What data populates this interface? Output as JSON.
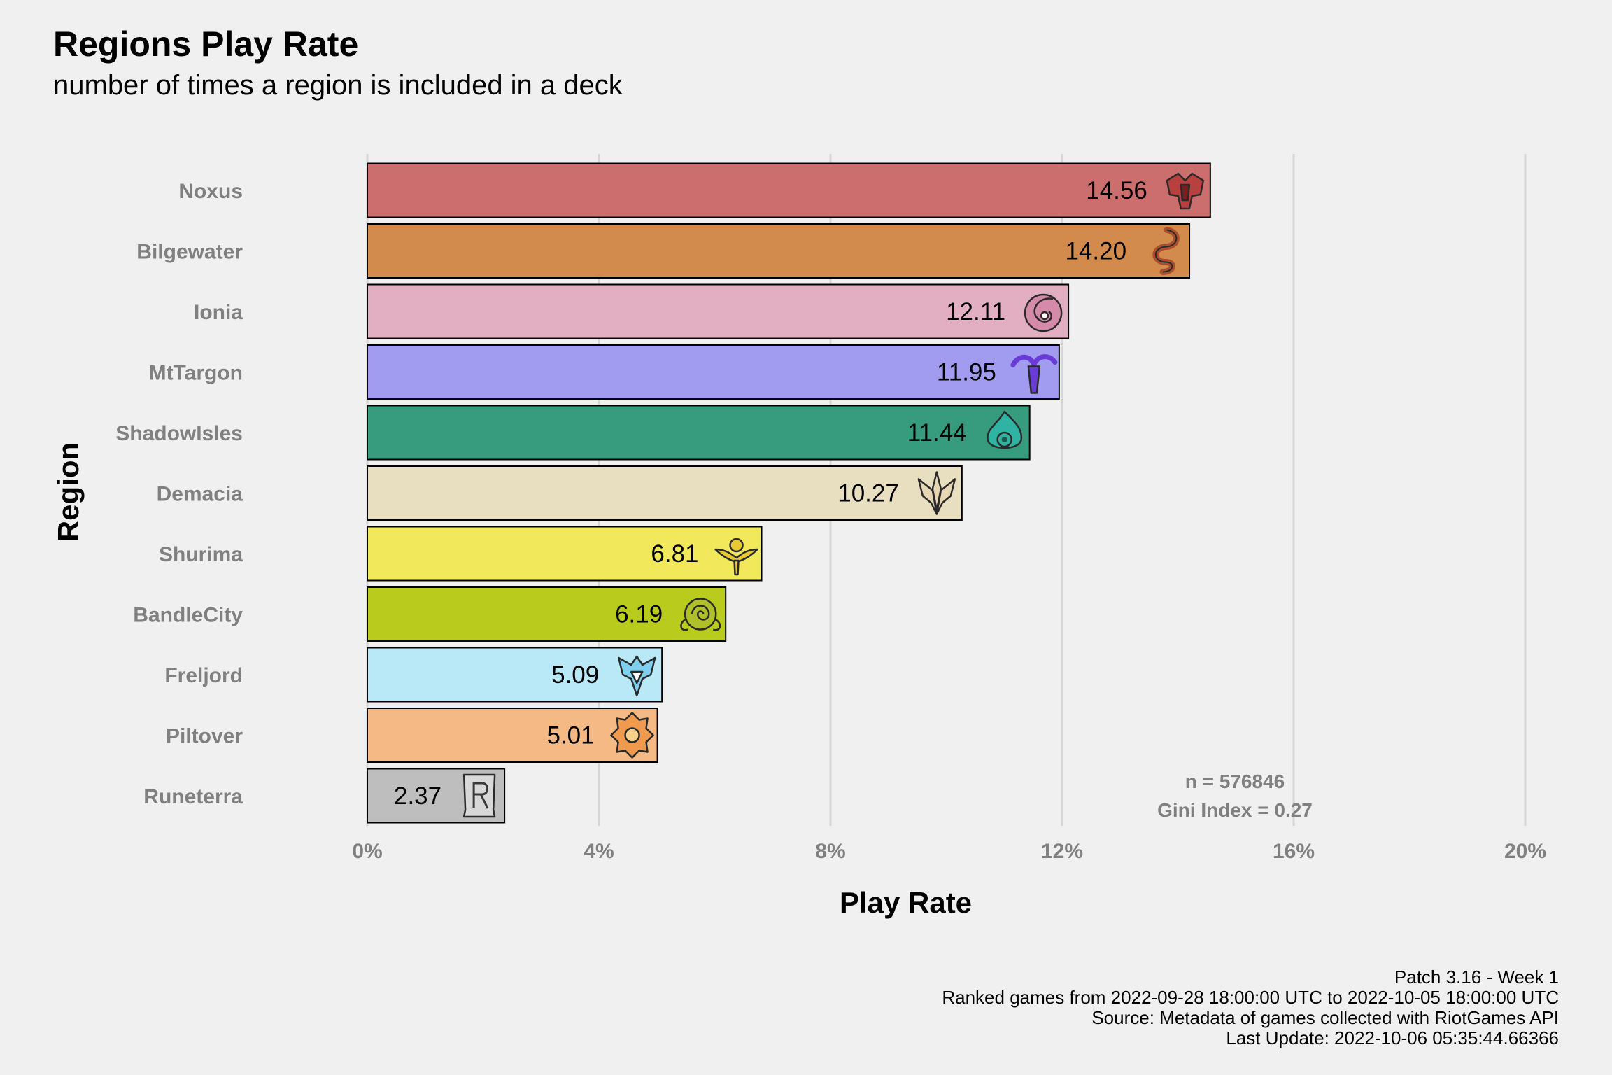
{
  "title": "Regions Play Rate",
  "subtitle": "number of times a region is included in a deck",
  "caption": [
    "Patch 3.16 - Week 1",
    "Ranked games from 2022-09-28 18:00:00 UTC to 2022-10-05 18:00:00 UTC",
    "Source: Metadata of games collected with RiotGames API",
    "Last Update: 2022-10-06 05:35:44.66366"
  ],
  "chart_data": {
    "type": "bar",
    "orientation": "horizontal",
    "xlabel": "Play Rate",
    "ylabel": "Region",
    "xlim": [
      0,
      20
    ],
    "xticks": [
      0,
      4,
      8,
      12,
      16,
      20
    ],
    "xtick_labels": [
      "0%",
      "4%",
      "8%",
      "12%",
      "16%",
      "20%"
    ],
    "grid": "vertical",
    "categories": [
      "Noxus",
      "Bilgewater",
      "Ionia",
      "MtTargon",
      "ShadowIsles",
      "Demacia",
      "Shurima",
      "BandleCity",
      "Freljord",
      "Piltover",
      "Runeterra"
    ],
    "values": [
      14.56,
      14.2,
      12.11,
      11.95,
      11.44,
      10.27,
      6.81,
      6.19,
      5.09,
      5.01,
      2.37
    ],
    "value_labels": [
      "14.56",
      "14.20",
      "12.11",
      "11.95",
      "11.44",
      "10.27",
      "6.81",
      "6.19",
      "5.09",
      "5.01",
      "2.37"
    ],
    "colors": [
      "#cd6e6e",
      "#d28b4d",
      "#e2afc2",
      "#a19cf0",
      "#379b7e",
      "#e8dfc0",
      "#f1e85c",
      "#b9cb1c",
      "#b9e9f7",
      "#f5b985",
      "#bebebe"
    ],
    "icon_names": [
      "noxus-icon",
      "bilgewater-icon",
      "ionia-icon",
      "mttargon-icon",
      "shadowisles-icon",
      "demacia-icon",
      "shurima-icon",
      "bandlecity-icon",
      "freljord-icon",
      "piltover-icon",
      "runeterra-icon"
    ],
    "icon_colors": [
      "#b8413f",
      "#a94f2d",
      "#d58aa9",
      "#6a3cd7",
      "#2fb3a3",
      "#e6d6b4",
      "#e8c92f",
      "#b0c02a",
      "#7fd0ee",
      "#ef9a4c",
      "#d8d8d8"
    ],
    "annotation": [
      "n = 576846",
      "Gini Index = 0.27"
    ]
  }
}
